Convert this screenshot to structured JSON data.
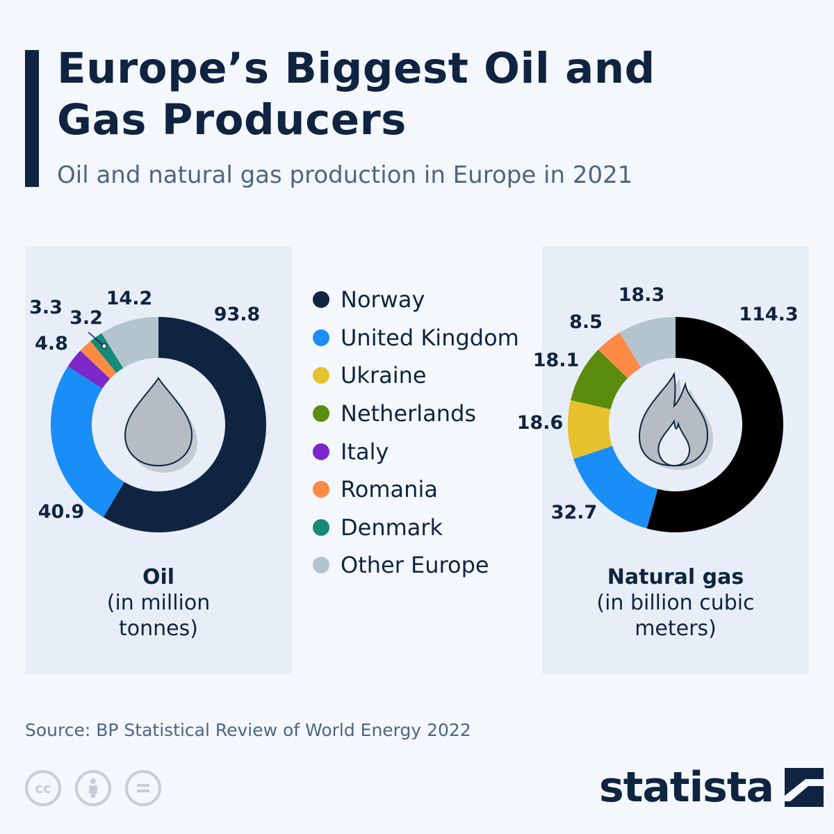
{
  "header": {
    "title": "Europe’s Biggest Oil and Gas Producers",
    "subtitle": "Oil and natural gas production in Europe in 2021"
  },
  "legend": [
    {
      "label": "Norway",
      "color": "#0f2440"
    },
    {
      "label": "United Kingdom",
      "color": "#1a8ef7"
    },
    {
      "label": "Ukraine",
      "color": "#e8c22e"
    },
    {
      "label": "Netherlands",
      "color": "#5b8c0e"
    },
    {
      "label": "Italy",
      "color": "#7b27c9"
    },
    {
      "label": "Romania",
      "color": "#ff8a45"
    },
    {
      "label": "Denmark",
      "color": "#168a78"
    },
    {
      "label": "Other Europe",
      "color": "#b3c4cf"
    }
  ],
  "chart_data": [
    {
      "type": "pie",
      "donut": true,
      "title": "Oil",
      "unit": "(in million tonnes)",
      "icon": "oil-drop-icon",
      "slices": [
        {
          "name": "Norway",
          "value": 93.8,
          "label": "93.8",
          "color": "#0f2440"
        },
        {
          "name": "United Kingdom",
          "value": 40.9,
          "label": "40.9",
          "color": "#1a8ef7"
        },
        {
          "name": "Italy",
          "value": 4.8,
          "label": "4.8",
          "color": "#7b27c9"
        },
        {
          "name": "Romania",
          "value": 3.3,
          "label": "3.3",
          "color": "#ff8a45"
        },
        {
          "name": "Denmark",
          "value": 3.2,
          "label": "3.2",
          "color": "#168a78"
        },
        {
          "name": "Other Europe",
          "value": 14.2,
          "label": "14.2",
          "color": "#b3c4cf"
        }
      ]
    },
    {
      "type": "pie",
      "donut": true,
      "title": "Natural gas",
      "unit": "(in billion cubic meters)",
      "icon": "flame-icon",
      "slices": [
        {
          "name": "Norway",
          "value": 114.3,
          "label": "114.3",
          "color": "#000000"
        },
        {
          "name": "United Kingdom",
          "value": 32.7,
          "label": "32.7",
          "color": "#1a8ef7"
        },
        {
          "name": "Ukraine",
          "value": 18.6,
          "label": "18.6",
          "color": "#e8c22e"
        },
        {
          "name": "Netherlands",
          "value": 18.1,
          "label": "18.1",
          "color": "#5b8c0e"
        },
        {
          "name": "Romania",
          "value": 8.5,
          "label": "8.5",
          "color": "#ff8a45"
        },
        {
          "name": "Other Europe",
          "value": 18.3,
          "label": "18.3",
          "color": "#b3c4cf"
        }
      ]
    }
  ],
  "footer": {
    "source": "Source: BP Statistical Review of World Energy 2022",
    "license_icons": [
      "cc-icon",
      "attribution-icon",
      "no-derivatives-icon"
    ],
    "brand": "statista"
  }
}
